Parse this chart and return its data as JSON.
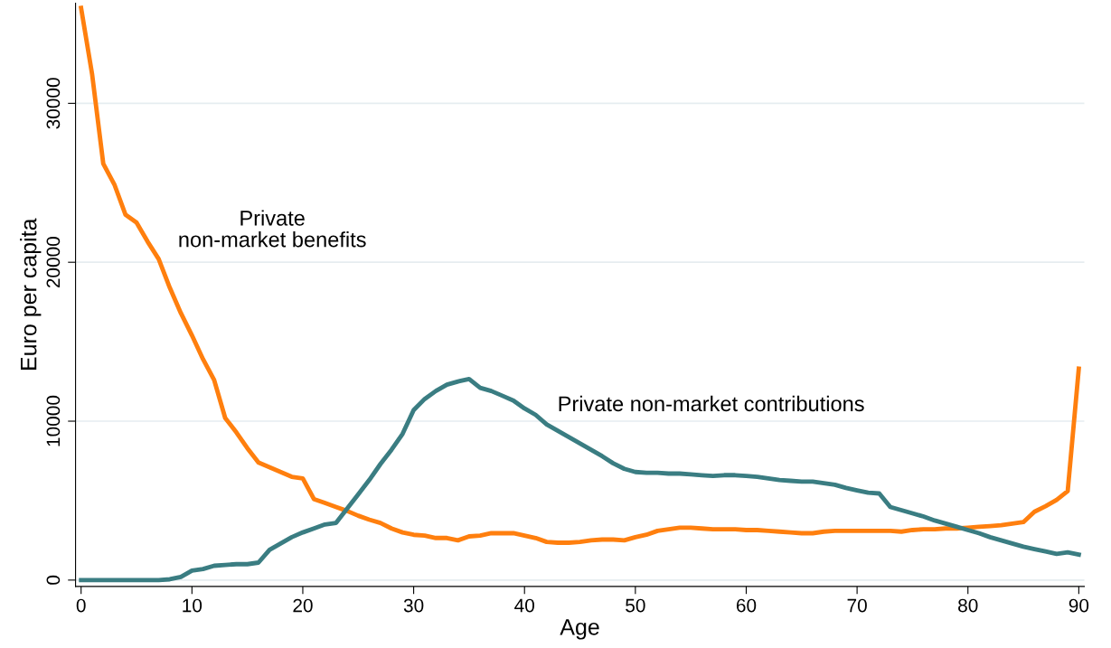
{
  "chart_data": {
    "type": "line",
    "xlabel": "Age",
    "ylabel": "Euro per capita",
    "x": [
      0,
      1,
      2,
      3,
      4,
      5,
      6,
      7,
      8,
      9,
      10,
      11,
      12,
      13,
      14,
      15,
      16,
      17,
      18,
      19,
      20,
      21,
      22,
      23,
      24,
      25,
      26,
      27,
      28,
      29,
      30,
      31,
      32,
      33,
      34,
      35,
      36,
      37,
      38,
      39,
      40,
      41,
      42,
      43,
      44,
      45,
      46,
      47,
      48,
      49,
      50,
      51,
      52,
      53,
      54,
      55,
      56,
      57,
      58,
      59,
      60,
      61,
      62,
      63,
      64,
      65,
      66,
      67,
      68,
      69,
      70,
      71,
      72,
      73,
      74,
      75,
      76,
      77,
      78,
      79,
      80,
      81,
      82,
      83,
      84,
      85,
      86,
      87,
      88,
      89,
      90
    ],
    "series": [
      {
        "name": "Private\nnon-market benefits",
        "color": "#ff7f0e",
        "values": [
          36000,
          31800,
          26200,
          24900,
          23000,
          22500,
          21300,
          20200,
          18400,
          16800,
          15400,
          13900,
          12600,
          10200,
          9300,
          8300,
          7400,
          7100,
          6800,
          6500,
          6400,
          5100,
          4850,
          4600,
          4350,
          4050,
          3800,
          3600,
          3250,
          3000,
          2850,
          2800,
          2650,
          2650,
          2500,
          2750,
          2800,
          2950,
          2950,
          2950,
          2800,
          2650,
          2400,
          2350,
          2350,
          2400,
          2500,
          2550,
          2550,
          2500,
          2700,
          2850,
          3100,
          3200,
          3300,
          3300,
          3250,
          3200,
          3200,
          3200,
          3150,
          3150,
          3100,
          3050,
          3000,
          2950,
          2950,
          3050,
          3100,
          3100,
          3100,
          3100,
          3100,
          3100,
          3050,
          3150,
          3200,
          3200,
          3250,
          3250,
          3300,
          3350,
          3400,
          3450,
          3550,
          3650,
          4300,
          4650,
          5050,
          5600,
          13300
        ]
      },
      {
        "name": "Private non-market contributions",
        "color": "#3a7d82",
        "values": [
          0,
          0,
          0,
          0,
          0,
          0,
          0,
          0,
          50,
          200,
          600,
          700,
          900,
          950,
          1000,
          1000,
          1100,
          1900,
          2300,
          2700,
          3000,
          3250,
          3500,
          3600,
          4500,
          5400,
          6300,
          7300,
          8200,
          9200,
          10700,
          11400,
          11900,
          12300,
          12500,
          12650,
          12100,
          11900,
          11600,
          11300,
          10800,
          10400,
          9800,
          9400,
          9000,
          8600,
          8200,
          7800,
          7350,
          7000,
          6800,
          6750,
          6750,
          6700,
          6700,
          6650,
          6600,
          6550,
          6600,
          6600,
          6550,
          6500,
          6400,
          6300,
          6250,
          6200,
          6200,
          6100,
          6000,
          5800,
          5650,
          5500,
          5450,
          4600,
          4400,
          4200,
          4000,
          3750,
          3550,
          3350,
          3150,
          2950,
          2700,
          2500,
          2300,
          2100,
          1950,
          1800,
          1650,
          1750,
          1600
        ]
      }
    ],
    "xlim": [
      -0.5,
      90.5
    ],
    "ylim": [
      -400,
      36300
    ],
    "xticks": [
      0,
      10,
      20,
      30,
      40,
      50,
      60,
      70,
      80,
      90
    ],
    "yticks": [
      0,
      10000,
      20000,
      30000
    ],
    "grid": "y",
    "marker": "none",
    "line_style": "solid"
  }
}
